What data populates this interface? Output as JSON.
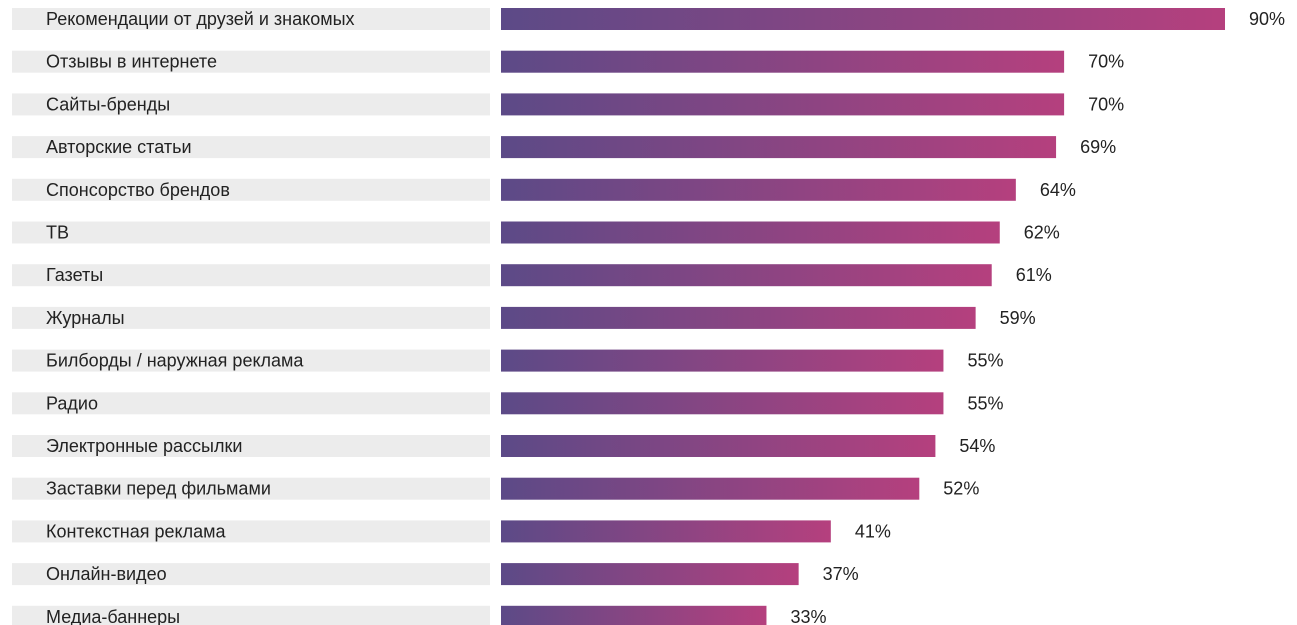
{
  "chart_data": {
    "type": "bar",
    "orientation": "horizontal",
    "title": "",
    "xlabel": "",
    "ylabel": "",
    "xlim": [
      0,
      90
    ],
    "grid": false,
    "legend": "none",
    "value_suffix": "%",
    "colors": {
      "bar_start": "#5c4a87",
      "bar_end": "#b5407e",
      "row_background": "#ececec",
      "text": "#222222"
    },
    "categories": [
      "Рекомендации от друзей и знакомых",
      "Отзывы в интернете",
      "Сайты-бренды",
      "Авторские статьи",
      "Спонсорство брендов",
      "ТВ",
      "Газеты",
      "Журналы",
      "Билборды / наружная реклама",
      "Радио",
      "Электронные рассылки",
      "Заставки перед фильмами",
      "Контекстная реклама",
      "Онлайн-видео",
      "Медиа-баннеры"
    ],
    "values": [
      90,
      70,
      70,
      69,
      64,
      62,
      61,
      59,
      55,
      55,
      54,
      52,
      41,
      37,
      33
    ],
    "value_labels": [
      "90%",
      "70%",
      "70%",
      "69%",
      "64%",
      "62%",
      "61%",
      "59%",
      "55%",
      "55%",
      "54%",
      "52%",
      "41%",
      "37%",
      "33%"
    ]
  }
}
